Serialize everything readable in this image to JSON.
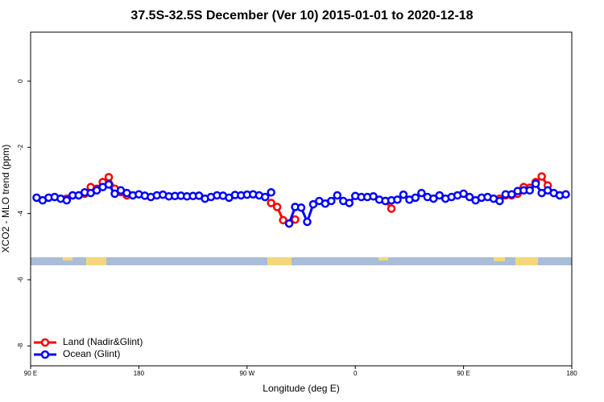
{
  "chart_data": {
    "type": "line",
    "title": "37.5S-32.5S December (Ver 10)   2015-01-01 to 2020-12-18",
    "x_label": "Longitude (deg E)",
    "y_label": "XCO2 - MLO trend (ppm)",
    "xlim": [
      90,
      540
    ],
    "ylim": [
      -8.6,
      1.48
    ],
    "xticks": [
      {
        "value": 90,
        "label": "90 E"
      },
      180,
      {
        "value": 270,
        "label": "90 W"
      },
      {
        "value": 360,
        "label": "0"
      },
      {
        "value": 450,
        "label": "90 E"
      },
      180
    ],
    "yticks": [
      0,
      -2,
      -4,
      -6,
      -8
    ],
    "legend": "bottomleft",
    "series": [
      {
        "name": "Land (Nadir&Glint)",
        "color": "#ff0000",
        "x": [
          120,
          125,
          130,
          135,
          140,
          145,
          150,
          155,
          160,
          165,
          170,
          175,
          290,
          295,
          300,
          305,
          310,
          315,
          385,
          390,
          395,
          480,
          485,
          490,
          495,
          500,
          505,
          510,
          515,
          520,
          525,
          530
        ],
        "values": [
          -3.55,
          -3.45,
          -3.45,
          -3.4,
          -3.2,
          -3.25,
          -3.05,
          -2.9,
          -3.25,
          -3.35,
          -3.45,
          null,
          -3.68,
          -3.8,
          -4.2,
          -4.3,
          -4.18,
          null,
          -3.62,
          -3.85,
          null,
          -3.55,
          -3.45,
          -3.45,
          -3.4,
          -3.2,
          -3.22,
          -3.05,
          -2.88,
          -3.15,
          null,
          -3.45
        ]
      },
      {
        "name": "Ocean (Glint)",
        "color": "#0000ff",
        "x": [
          95,
          100,
          105,
          110,
          115,
          120,
          125,
          130,
          135,
          140,
          145,
          150,
          155,
          160,
          165,
          170,
          175,
          180,
          185,
          190,
          195,
          200,
          205,
          210,
          215,
          220,
          225,
          230,
          235,
          240,
          245,
          250,
          255,
          260,
          265,
          270,
          275,
          280,
          285,
          290,
          295,
          300,
          305,
          310,
          315,
          320,
          325,
          330,
          335,
          340,
          345,
          350,
          355,
          360,
          365,
          370,
          375,
          380,
          385,
          390,
          395,
          400,
          405,
          410,
          415,
          420,
          425,
          430,
          435,
          440,
          445,
          450,
          455,
          460,
          465,
          470,
          475,
          480,
          485,
          490,
          495,
          500,
          505,
          510,
          515,
          520,
          525,
          530,
          535
        ],
        "values": [
          -3.52,
          -3.6,
          -3.52,
          -3.5,
          -3.55,
          -3.6,
          -3.45,
          -3.45,
          -3.36,
          -3.38,
          -3.3,
          -3.2,
          -3.12,
          -3.4,
          -3.3,
          -3.38,
          -3.45,
          -3.42,
          -3.46,
          -3.5,
          -3.45,
          -3.43,
          -3.48,
          -3.47,
          -3.46,
          -3.48,
          -3.47,
          -3.46,
          -3.55,
          -3.5,
          -3.45,
          -3.46,
          -3.52,
          -3.44,
          -3.45,
          -3.43,
          -3.42,
          -3.45,
          -3.5,
          -3.36,
          null,
          null,
          -4.3,
          -3.8,
          -3.82,
          -4.25,
          -3.72,
          -3.62,
          -3.7,
          -3.62,
          -3.45,
          -3.62,
          -3.68,
          -3.47,
          -3.5,
          -3.5,
          -3.48,
          -3.58,
          -3.62,
          -3.6,
          -3.58,
          -3.43,
          -3.58,
          -3.52,
          -3.38,
          -3.5,
          -3.55,
          -3.45,
          -3.55,
          -3.5,
          -3.45,
          -3.4,
          -3.5,
          -3.6,
          -3.52,
          -3.5,
          -3.55,
          -3.62,
          -3.42,
          -3.42,
          -3.32,
          -3.3,
          -3.3,
          -3.1,
          -3.38,
          -3.3,
          -3.38,
          -3.45,
          -3.42
        ]
      }
    ]
  }
}
